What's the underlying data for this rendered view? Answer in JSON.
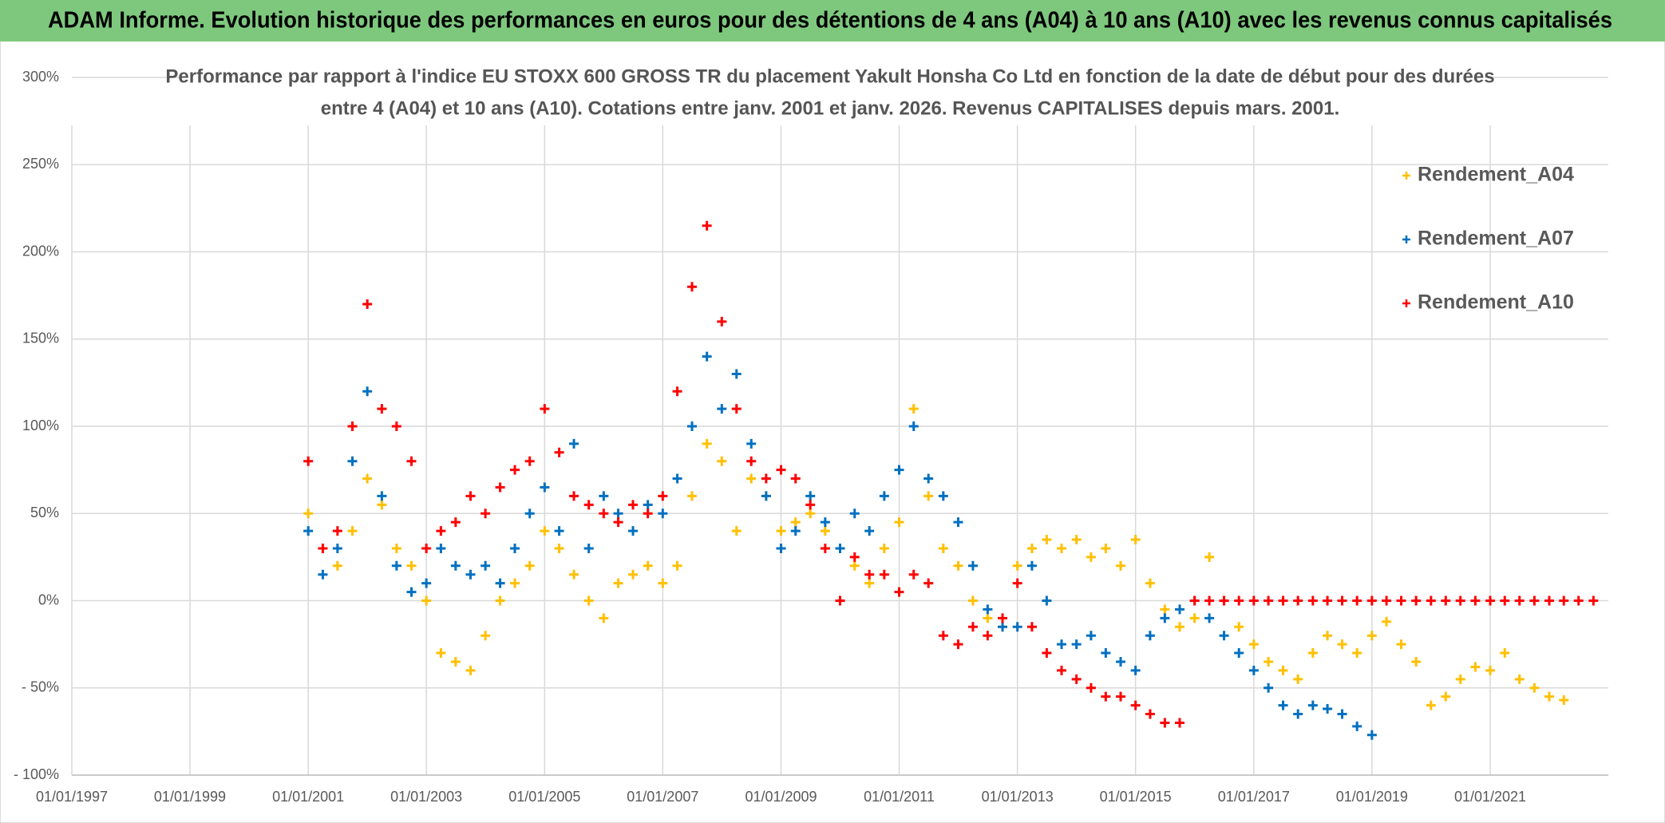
{
  "header": {
    "title": "ADAM Informe. Evolution historique des performances en euros pour des détentions de 4 ans (A04) à 10 ans (A10) avec les revenus connus capitalisés"
  },
  "chart_data": {
    "type": "scatter",
    "title": "Performance par rapport à l'indice EU STOXX 600 GROSS TR  du placement Yakult Honsha Co Ltd en fonction de la date de début pour des durées",
    "subtitle": "entre 4 (A04) et 10 ans (A10). Cotations entre janv. 2001 et janv. 2026. Revenus CAPITALISES depuis mars. 2001.",
    "xlim": [
      "1997-01-01",
      "2023-01-01"
    ],
    "xticks": [
      {
        "value": "1997-01-01",
        "label": "01/01/1997"
      },
      {
        "value": "1999-01-01",
        "label": "01/01/1999"
      },
      {
        "value": "2001-01-01",
        "label": "01/01/2001"
      },
      {
        "value": "2003-01-01",
        "label": "01/01/2003"
      },
      {
        "value": "2005-01-01",
        "label": "01/01/2005"
      },
      {
        "value": "2007-01-01",
        "label": "01/01/2007"
      },
      {
        "value": "2009-01-01",
        "label": "01/01/2009"
      },
      {
        "value": "2011-01-01",
        "label": "01/01/2011"
      },
      {
        "value": "2013-01-01",
        "label": "01/01/2013"
      },
      {
        "value": "2015-01-01",
        "label": "01/01/2015"
      },
      {
        "value": "2017-01-01",
        "label": "01/01/2017"
      },
      {
        "value": "2019-01-01",
        "label": "01/01/2019"
      },
      {
        "value": "2021-01-01",
        "label": "01/01/2021"
      }
    ],
    "ylim": [
      -100,
      300
    ],
    "yticks": [
      {
        "value": -100,
        "label": "- 100%"
      },
      {
        "value": -50,
        "label": "- 50%"
      },
      {
        "value": 0,
        "label": "0%"
      },
      {
        "value": 50,
        "label": "50%"
      },
      {
        "value": 100,
        "label": "100%"
      },
      {
        "value": 150,
        "label": "150%"
      },
      {
        "value": 200,
        "label": "200%"
      },
      {
        "value": 250,
        "label": "250%"
      },
      {
        "value": 300,
        "label": "300%"
      }
    ],
    "grid": true,
    "legend": "top-right",
    "series": [
      {
        "name": "Rendement_A04",
        "color": "#ffc000",
        "x": [
          "2001-01-01",
          "2001-04-01",
          "2001-07-01",
          "2001-10-01",
          "2002-01-01",
          "2002-04-01",
          "2002-07-01",
          "2002-10-01",
          "2003-01-01",
          "2003-04-01",
          "2003-07-01",
          "2003-10-01",
          "2004-01-01",
          "2004-04-01",
          "2004-07-01",
          "2004-10-01",
          "2005-01-01",
          "2005-04-01",
          "2005-07-01",
          "2005-10-01",
          "2006-01-01",
          "2006-04-01",
          "2006-07-01",
          "2006-10-01",
          "2007-01-01",
          "2007-04-01",
          "2007-07-01",
          "2007-10-01",
          "2008-01-01",
          "2008-04-01",
          "2008-07-01",
          "2008-10-01",
          "2009-01-01",
          "2009-04-01",
          "2009-07-01",
          "2009-10-01",
          "2010-01-01",
          "2010-04-01",
          "2010-07-01",
          "2010-10-01",
          "2011-01-01",
          "2011-04-01",
          "2011-07-01",
          "2011-10-01",
          "2012-01-01",
          "2012-04-01",
          "2012-07-01",
          "2012-10-01",
          "2013-01-01",
          "2013-04-01",
          "2013-07-01",
          "2013-10-01",
          "2014-01-01",
          "2014-04-01",
          "2014-07-01",
          "2014-10-01",
          "2015-01-01",
          "2015-04-01",
          "2015-07-01",
          "2015-10-01",
          "2016-01-01",
          "2016-04-01",
          "2016-07-01",
          "2016-10-01",
          "2017-01-01",
          "2017-04-01",
          "2017-07-01",
          "2017-10-01",
          "2018-01-01",
          "2018-04-01",
          "2018-07-01",
          "2018-10-01",
          "2019-01-01",
          "2019-04-01",
          "2019-07-01",
          "2019-10-01",
          "2020-01-01",
          "2020-04-01",
          "2020-07-01",
          "2020-10-01",
          "2021-01-01",
          "2021-04-01",
          "2021-07-01",
          "2021-10-01",
          "2022-01-01",
          "2022-04-01"
        ],
        "values": [
          50,
          30,
          20,
          40,
          70,
          55,
          30,
          20,
          0,
          -30,
          -35,
          -40,
          -20,
          0,
          10,
          20,
          40,
          30,
          15,
          0,
          -10,
          10,
          15,
          20,
          10,
          20,
          60,
          90,
          80,
          40,
          70,
          60,
          40,
          45,
          50,
          40,
          30,
          20,
          10,
          30,
          45,
          110,
          60,
          30,
          20,
          0,
          -10,
          -15,
          20,
          30,
          35,
          30,
          35,
          25,
          30,
          20,
          35,
          10,
          -5,
          -15,
          -10,
          25,
          0,
          -15,
          -25,
          -35,
          -40,
          -45,
          -30,
          -20,
          -25,
          -30,
          -20,
          -12,
          -25,
          -35,
          -60,
          -55,
          -45,
          -38,
          -40,
          -30,
          -45,
          -50,
          -55,
          -57
        ]
      },
      {
        "name": "Rendement_A07",
        "color": "#0070c0",
        "x": [
          "2001-01-01",
          "2001-04-01",
          "2001-07-01",
          "2001-10-01",
          "2002-01-01",
          "2002-04-01",
          "2002-07-01",
          "2002-10-01",
          "2003-01-01",
          "2003-04-01",
          "2003-07-01",
          "2003-10-01",
          "2004-01-01",
          "2004-04-01",
          "2004-07-01",
          "2004-10-01",
          "2005-01-01",
          "2005-04-01",
          "2005-07-01",
          "2005-10-01",
          "2006-01-01",
          "2006-04-01",
          "2006-07-01",
          "2006-10-01",
          "2007-01-01",
          "2007-04-01",
          "2007-07-01",
          "2007-10-01",
          "2008-01-01",
          "2008-04-01",
          "2008-07-01",
          "2008-10-01",
          "2009-01-01",
          "2009-04-01",
          "2009-07-01",
          "2009-10-01",
          "2010-01-01",
          "2010-04-01",
          "2010-07-01",
          "2010-10-01",
          "2011-01-01",
          "2011-04-01",
          "2011-07-01",
          "2011-10-01",
          "2012-01-01",
          "2012-04-01",
          "2012-07-01",
          "2012-10-01",
          "2013-01-01",
          "2013-04-01",
          "2013-07-01",
          "2013-10-01",
          "2014-01-01",
          "2014-04-01",
          "2014-07-01",
          "2014-10-01",
          "2015-01-01",
          "2015-04-01",
          "2015-07-01",
          "2015-10-01",
          "2016-01-01",
          "2016-04-01",
          "2016-07-01",
          "2016-10-01",
          "2017-01-01",
          "2017-04-01",
          "2017-07-01",
          "2017-10-01",
          "2018-01-01",
          "2018-04-01",
          "2018-07-01",
          "2018-10-01",
          "2019-01-01"
        ],
        "values": [
          40,
          15,
          30,
          80,
          120,
          60,
          20,
          5,
          10,
          30,
          20,
          15,
          20,
          10,
          30,
          50,
          65,
          40,
          90,
          30,
          60,
          50,
          40,
          55,
          50,
          70,
          100,
          140,
          110,
          130,
          90,
          60,
          30,
          40,
          60,
          45,
          30,
          50,
          40,
          60,
          75,
          100,
          70,
          60,
          45,
          20,
          -5,
          -15,
          -15,
          20,
          0,
          -25,
          -25,
          -20,
          -30,
          -35,
          -40,
          -20,
          -10,
          -5,
          0,
          -10,
          -20,
          -30,
          -40,
          -50,
          -60,
          -65,
          -60,
          -62,
          -65,
          -72,
          -77
        ]
      },
      {
        "name": "Rendement_A10",
        "color": "#ff0000",
        "x": [
          "2001-01-01",
          "2001-04-01",
          "2001-07-01",
          "2001-10-01",
          "2002-01-01",
          "2002-04-01",
          "2002-07-01",
          "2002-10-01",
          "2003-01-01",
          "2003-04-01",
          "2003-07-01",
          "2003-10-01",
          "2004-01-01",
          "2004-04-01",
          "2004-07-01",
          "2004-10-01",
          "2005-01-01",
          "2005-04-01",
          "2005-07-01",
          "2005-10-01",
          "2006-01-01",
          "2006-04-01",
          "2006-07-01",
          "2006-10-01",
          "2007-01-01",
          "2007-04-01",
          "2007-07-01",
          "2007-10-01",
          "2008-01-01",
          "2008-04-01",
          "2008-07-01",
          "2008-10-01",
          "2009-01-01",
          "2009-04-01",
          "2009-07-01",
          "2009-10-01",
          "2010-01-01",
          "2010-04-01",
          "2010-07-01",
          "2010-10-01",
          "2011-01-01",
          "2011-04-01",
          "2011-07-01",
          "2011-10-01",
          "2012-01-01",
          "2012-04-01",
          "2012-07-01",
          "2012-10-01",
          "2013-01-01",
          "2013-04-01",
          "2013-07-01",
          "2013-10-01",
          "2014-01-01",
          "2014-04-01",
          "2014-07-01",
          "2014-10-01",
          "2015-01-01",
          "2015-04-01",
          "2015-07-01",
          "2015-10-01",
          "2016-01-01",
          "2016-04-01",
          "2016-07-01",
          "2016-10-01",
          "2017-01-01",
          "2017-04-01",
          "2017-07-01",
          "2017-10-01",
          "2018-01-01",
          "2018-04-01",
          "2018-07-01",
          "2018-10-01",
          "2019-01-01",
          "2019-04-01",
          "2019-07-01",
          "2019-10-01",
          "2020-01-01",
          "2020-04-01",
          "2020-07-01",
          "2020-10-01",
          "2021-01-01",
          "2021-04-01",
          "2021-07-01",
          "2021-10-01",
          "2022-01-01",
          "2022-04-01",
          "2022-07-01",
          "2022-10-01"
        ],
        "values": [
          80,
          30,
          40,
          100,
          170,
          110,
          100,
          80,
          30,
          40,
          45,
          60,
          50,
          65,
          75,
          80,
          110,
          85,
          60,
          55,
          50,
          45,
          55,
          50,
          60,
          120,
          180,
          215,
          160,
          110,
          80,
          70,
          75,
          70,
          55,
          30,
          0,
          25,
          15,
          15,
          5,
          15,
          10,
          -20,
          -25,
          -15,
          -20,
          -10,
          10,
          -15,
          -30,
          -40,
          -45,
          -50,
          -55,
          -55,
          -60,
          -65,
          -70,
          -70,
          0,
          0,
          0,
          0,
          0,
          0,
          0,
          0,
          0,
          0,
          0,
          0,
          0,
          0,
          0,
          0,
          0,
          0,
          0,
          0,
          0,
          0,
          0,
          0,
          0,
          0,
          0,
          0
        ]
      }
    ]
  }
}
